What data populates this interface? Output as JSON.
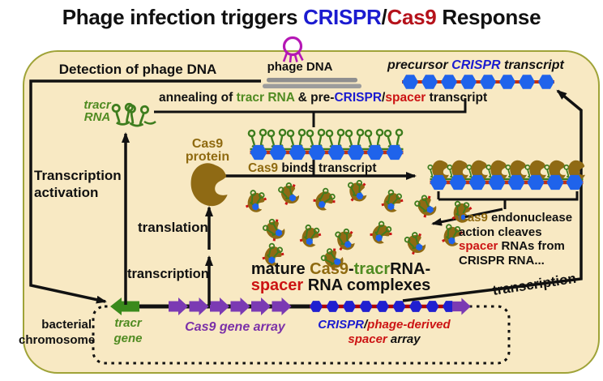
{
  "colors": {
    "background": "#FFFFFF",
    "panel_fill": "#F8E9C3",
    "panel_border": "#9FA338",
    "crispr_blue": "#1B1BD0",
    "cas9_title_red": "#B5121B",
    "spacer_red": "#CC1414",
    "tracr_green": "#4F8B21",
    "cas9_brown": "#8F6A10",
    "gene_purple": "#7B3AB3",
    "phage_magenta": "#B517B5",
    "hexagon_blue": "#1F63EB",
    "array_hexagon_navy": "#201FD0",
    "dna_gray": "#8F8F8F"
  },
  "title": {
    "segments": [
      {
        "text": "Phage infection triggers ",
        "color": "#111111"
      },
      {
        "text": "CRISPR",
        "color": "#1B1BD0"
      },
      {
        "text": "/",
        "color": "#111111"
      },
      {
        "text": "Cas9",
        "color": "#B5121B"
      },
      {
        "text": " Response",
        "color": "#111111"
      }
    ]
  },
  "labels": {
    "detection": "Detection of phage DNA",
    "phage_dna": "phage DNA",
    "precursor": {
      "segments": [
        {
          "text": "precursor ",
          "color": "#111111"
        },
        {
          "text": "CRISPR",
          "color": "#1B1BD0"
        },
        {
          "text": " transcript",
          "color": "#111111"
        }
      ]
    },
    "annealing": {
      "segments": [
        {
          "text": "annealing of ",
          "color": "#111111"
        },
        {
          "text": "tracr RNA",
          "color": "#4F8B21"
        },
        {
          "text": " & pre-",
          "color": "#111111"
        },
        {
          "text": "CRISPR",
          "color": "#1B1BD0"
        },
        {
          "text": "/",
          "color": "#111111"
        },
        {
          "text": "spacer",
          "color": "#CC1414"
        },
        {
          "text": " transcript",
          "color": "#111111"
        }
      ]
    },
    "tracr_rna": {
      "line1": "tracr",
      "line2": "RNA"
    },
    "transcription_activation": {
      "line1": "Transcription",
      "line2": "activation"
    },
    "cas9_protein": {
      "line1": "Cas9",
      "line2": "protein"
    },
    "cas9_binds": {
      "segments": [
        {
          "text": "Cas9 ",
          "color": "#8F6A10"
        },
        {
          "text": "binds transcript",
          "color": "#111111"
        }
      ]
    },
    "translation": "translation",
    "transcription_left": "transcription",
    "mature": {
      "line1": {
        "segments": [
          {
            "text": "mature ",
            "color": "#111111"
          },
          {
            "text": "Cas9",
            "color": "#8F6A10"
          },
          {
            "text": "-",
            "color": "#111111"
          },
          {
            "text": "tracr",
            "color": "#4F8B21"
          },
          {
            "text": "RNA-",
            "color": "#111111"
          }
        ]
      },
      "line2": {
        "segments": [
          {
            "text": "spacer",
            "color": "#CC1414"
          },
          {
            "text": " RNA complexes",
            "color": "#111111"
          }
        ]
      }
    },
    "endonuclease": {
      "line1": {
        "segments": [
          {
            "text": "Cas9",
            "color": "#8F6A10"
          },
          {
            "text": " endonuclease",
            "color": "#111111"
          }
        ]
      },
      "line2": "action cleaves",
      "line3": {
        "segments": [
          {
            "text": "spacer",
            "color": "#CC1414"
          },
          {
            "text": " RNAs from",
            "color": "#111111"
          }
        ]
      },
      "line4": "CRISPR RNA..."
    },
    "transcription_right": "transcription",
    "bacterial_chromosome": {
      "line1": "bacterial",
      "line2": "chromosome"
    },
    "tracr_gene": {
      "line1": "tracr",
      "line2": "gene"
    },
    "cas9_gene_array": "Cas9 gene array",
    "crispr_array": {
      "line1": {
        "segments": [
          {
            "text": "CRISPR",
            "color": "#1B1BD0"
          },
          {
            "text": "/",
            "color": "#111111"
          },
          {
            "text": "phage-derived",
            "color": "#CC1414"
          }
        ]
      },
      "line2": {
        "segments": [
          {
            "text": "spacer",
            "color": "#CC1414"
          },
          {
            "text": " array",
            "color": "#111111"
          }
        ]
      }
    }
  },
  "icons": {
    "phage": "bacteriophage-icon",
    "phage_dna": "dna-double-bar-icon",
    "tracr_rna": "rna-hairpin-icon",
    "cas9_protein": "cas9-protein-blob-icon",
    "crispr_repeat": "blue-hexagon-repeat-icon",
    "gene_arrow": "block-gene-arrow-icon"
  },
  "chains": {
    "precursor": {
      "units": 8
    },
    "annealed": {
      "units": 8
    },
    "cas9_bound": {
      "units": 8
    },
    "genome_array": {
      "units": 9
    }
  },
  "genome": {
    "cas9_gene_arrows": 6,
    "tracr_gene_arrows": 1
  },
  "mature_complexes": {
    "count": 15
  }
}
